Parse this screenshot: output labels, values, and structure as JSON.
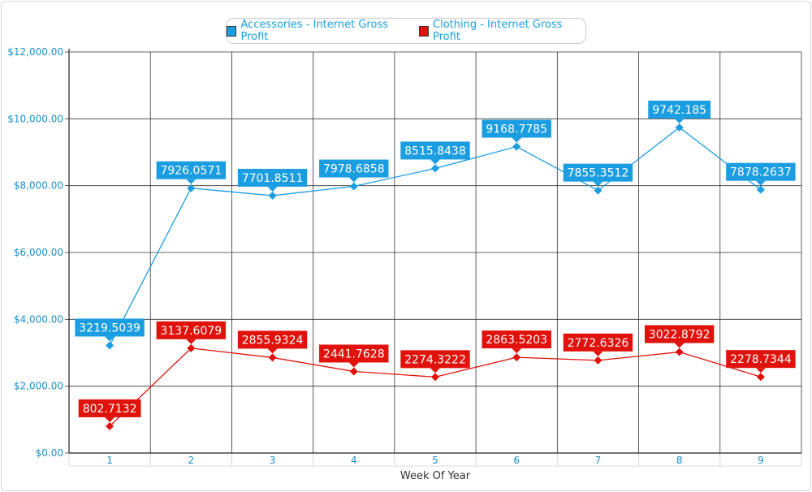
{
  "colors": {
    "accessories": "#1b9de2",
    "clothing": "#e0120b",
    "axis_text": "#1a8fd0",
    "grid": "#333333"
  },
  "legend": {
    "accessories_label": "Accessories - Internet Gross Profit",
    "clothing_label": "Clothing - Internet Gross Profit"
  },
  "chart_data": {
    "type": "line",
    "title": "",
    "xlabel": "Week Of Year",
    "ylabel": "",
    "categories": [
      "1",
      "2",
      "3",
      "4",
      "5",
      "6",
      "7",
      "8",
      "9"
    ],
    "ylim": [
      0,
      12000
    ],
    "y_ticks": [
      0,
      2000,
      4000,
      6000,
      8000,
      10000,
      12000
    ],
    "y_tick_labels": [
      "$0.00",
      "$2,000.00",
      "$4,000.00",
      "$6,000.00",
      "$8,000.00",
      "$10,000.00",
      "$12,000.00"
    ],
    "grid": true,
    "legend_position": "top-center",
    "series": [
      {
        "name": "Accessories - Internet Gross Profit",
        "values": [
          3219.5039,
          7926.0571,
          7701.8511,
          7978.6858,
          8515.8438,
          9168.7785,
          7855.3512,
          9742.185,
          7878.2637
        ],
        "labels": [
          "3219.5039",
          "7926.0571",
          "7701.8511",
          "7978.6858",
          "8515.8438",
          "9168.7785",
          "7855.3512",
          "9742.185",
          "7878.2637"
        ]
      },
      {
        "name": "Clothing - Internet Gross Profit",
        "values": [
          802.7132,
          3137.6079,
          2855.9324,
          2441.7628,
          2274.3222,
          2863.5203,
          2772.6326,
          3022.8792,
          2278.7344
        ],
        "labels": [
          "802.7132",
          "3137.6079",
          "2855.9324",
          "2441.7628",
          "2274.3222",
          "2863.5203",
          "2772.6326",
          "3022.8792",
          "2278.7344"
        ]
      }
    ]
  }
}
